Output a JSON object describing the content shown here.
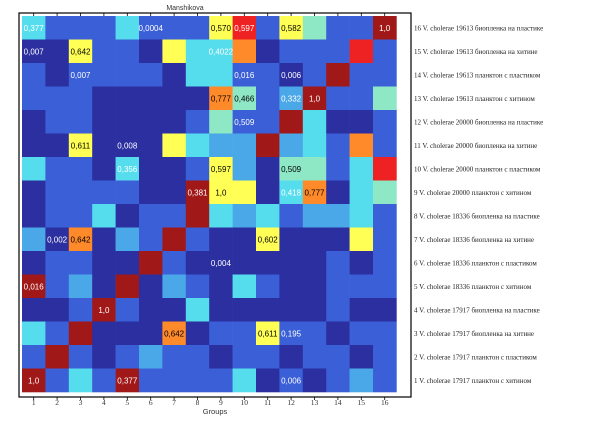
{
  "chart_data": {
    "type": "heatmap",
    "title": "Manshikova",
    "xlabel": "Groups",
    "x_ticks": [
      "1",
      "2",
      "3",
      "4",
      "5",
      "6",
      "7",
      "8",
      "9",
      "10",
      "11",
      "12",
      "13",
      "14",
      "15",
      "16"
    ],
    "row_labels": [
      "16 V. cholerae 19613 биопленка на пластике",
      "15 V. cholerae 19613 биопленка на хитине",
      "14 V. cholerae 19613   планктон  с пластиком",
      "13 V. cholerae 19613   планктон  с хитином",
      "12  V. cholerae 20000  биопленка на пластике",
      "11  V. cholerae 20000  биопленка на хитине",
      "10  V. cholerae 20000   планктон  с пластиком",
      "9  V. cholerae 20000   планктон  с хитином",
      "8  V. cholerae 18336 биопленка на пластике",
      "7  V. cholerae 18336 биопленка на хитине",
      "6  V. cholerae 18336   планктон  с пластиком",
      "5  V. cholerae 18336   планктон  с хитином",
      "4  V. cholerae 17917 биопленка на пластике",
      "3  V. cholerae 17917 биопленка на хитине",
      "2   V. cholerae 17917   планктон  с пластиком",
      "1   V. cholerae 17917   планктон  с хитином"
    ],
    "color_codes": [
      "#2b2fa0",
      "#3a5fd6",
      "#4aa8e8",
      "#55ddee",
      "#8ee8c6",
      "#ffff55",
      "#ff8a2a",
      "#ee2222",
      "#a01818"
    ],
    "grid": [
      [
        3,
        1,
        1,
        1,
        3,
        1,
        1,
        1,
        5,
        7,
        1,
        5,
        4,
        1,
        1,
        8
      ],
      [
        0,
        0,
        5,
        1,
        1,
        0,
        5,
        3,
        3,
        6,
        0,
        1,
        1,
        1,
        7,
        1
      ],
      [
        1,
        0,
        1,
        1,
        1,
        1,
        0,
        3,
        3,
        1,
        1,
        0,
        1,
        8,
        1,
        1
      ],
      [
        1,
        1,
        1,
        0,
        0,
        0,
        0,
        0,
        6,
        4,
        1,
        2,
        8,
        1,
        1,
        4
      ],
      [
        0,
        1,
        1,
        0,
        0,
        0,
        0,
        1,
        4,
        1,
        1,
        8,
        3,
        0,
        0,
        1
      ],
      [
        0,
        0,
        5,
        0,
        0,
        0,
        5,
        3,
        2,
        2,
        8,
        2,
        3,
        1,
        6,
        1
      ],
      [
        3,
        1,
        1,
        0,
        3,
        0,
        0,
        1,
        5,
        2,
        0,
        4,
        4,
        1,
        3,
        7
      ],
      [
        0,
        1,
        1,
        1,
        1,
        0,
        0,
        8,
        5,
        5,
        0,
        3,
        6,
        0,
        3,
        4
      ],
      [
        0,
        1,
        1,
        3,
        0,
        1,
        1,
        8,
        3,
        2,
        3,
        1,
        2,
        2,
        3,
        1
      ],
      [
        2,
        0,
        6,
        0,
        2,
        1,
        8,
        1,
        0,
        0,
        5,
        0,
        0,
        0,
        5,
        1
      ],
      [
        0,
        1,
        1,
        0,
        0,
        8,
        1,
        0,
        0,
        0,
        0,
        0,
        0,
        1,
        0,
        1
      ],
      [
        8,
        1,
        2,
        0,
        8,
        0,
        2,
        1,
        0,
        3,
        1,
        0,
        0,
        1,
        1,
        1
      ],
      [
        0,
        0,
        1,
        8,
        1,
        0,
        0,
        3,
        0,
        0,
        0,
        0,
        0,
        1,
        0,
        0
      ],
      [
        3,
        1,
        8,
        0,
        0,
        0,
        6,
        0,
        1,
        1,
        5,
        1,
        1,
        0,
        1,
        1
      ],
      [
        1,
        8,
        1,
        0,
        1,
        2,
        1,
        1,
        0,
        1,
        1,
        0,
        1,
        1,
        0,
        1
      ],
      [
        8,
        1,
        3,
        1,
        8,
        1,
        1,
        1,
        1,
        3,
        0,
        1,
        0,
        1,
        2,
        1
      ]
    ],
    "annotations": [
      {
        "row": 16,
        "col": 1,
        "text": "0,377"
      },
      {
        "row": 16,
        "col": 6,
        "text": "0,0004"
      },
      {
        "row": 16,
        "col": 9,
        "text": "0,570"
      },
      {
        "row": 16,
        "col": 10,
        "text": "0,597"
      },
      {
        "row": 16,
        "col": 12,
        "text": "0,582"
      },
      {
        "row": 16,
        "col": 16,
        "text": "1,0"
      },
      {
        "row": 15,
        "col": 1,
        "text": "0,007"
      },
      {
        "row": 15,
        "col": 3,
        "text": "0,642"
      },
      {
        "row": 15,
        "col": 9,
        "text": "0,4022"
      },
      {
        "row": 14,
        "col": 3,
        "text": "0,007"
      },
      {
        "row": 14,
        "col": 10,
        "text": "0,016"
      },
      {
        "row": 14,
        "col": 12,
        "text": "0,006"
      },
      {
        "row": 13,
        "col": 9,
        "text": "0,777"
      },
      {
        "row": 13,
        "col": 10,
        "text": "0,466"
      },
      {
        "row": 13,
        "col": 12,
        "text": "0,332"
      },
      {
        "row": 13,
        "col": 13,
        "text": "1,0"
      },
      {
        "row": 12,
        "col": 10,
        "text": "0,509"
      },
      {
        "row": 11,
        "col": 3,
        "text": "0,611"
      },
      {
        "row": 11,
        "col": 5,
        "text": "0,008"
      },
      {
        "row": 10,
        "col": 5,
        "text": "0,356"
      },
      {
        "row": 10,
        "col": 9,
        "text": "0,597"
      },
      {
        "row": 10,
        "col": 12,
        "text": "0,509"
      },
      {
        "row": 9,
        "col": 8,
        "text": "0,381"
      },
      {
        "row": 9,
        "col": 9,
        "text": "1,0"
      },
      {
        "row": 9,
        "col": 12,
        "text": "0,418"
      },
      {
        "row": 9,
        "col": 13,
        "text": "0,777"
      },
      {
        "row": 7,
        "col": 2,
        "text": "0,002"
      },
      {
        "row": 7,
        "col": 3,
        "text": "0,642"
      },
      {
        "row": 7,
        "col": 11,
        "text": "0,602"
      },
      {
        "row": 6,
        "col": 9,
        "text": "0,004"
      },
      {
        "row": 5,
        "col": 1,
        "text": "0,016"
      },
      {
        "row": 4,
        "col": 4,
        "text": "1,0"
      },
      {
        "row": 3,
        "col": 7,
        "text": "0,642"
      },
      {
        "row": 3,
        "col": 11,
        "text": "0,611"
      },
      {
        "row": 3,
        "col": 12,
        "text": "0,195"
      },
      {
        "row": 1,
        "col": 1,
        "text": "1,0"
      },
      {
        "row": 1,
        "col": 5,
        "text": "0,377"
      },
      {
        "row": 1,
        "col": 12,
        "text": "0,006"
      }
    ]
  }
}
